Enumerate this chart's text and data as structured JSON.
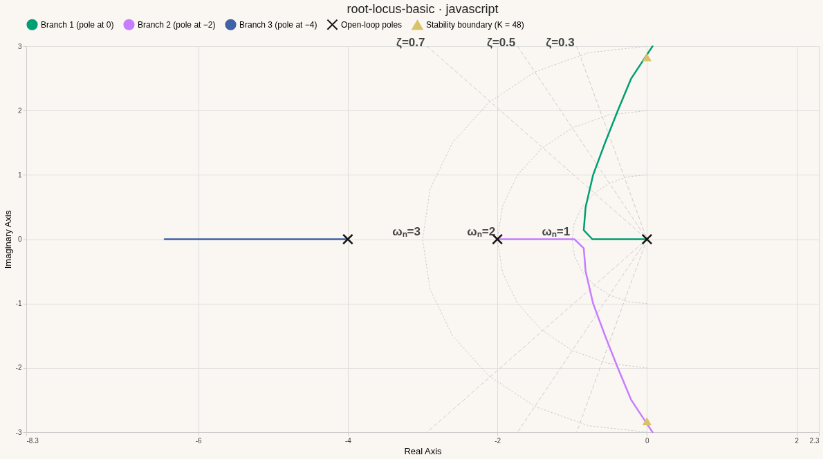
{
  "chart_data": {
    "type": "line",
    "title": "root-locus-basic · javascript",
    "xlabel": "Real Axis",
    "ylabel": "Imaginary Axis",
    "xlim": [
      -8.3,
      2.3
    ],
    "xticks": [
      -8.3,
      -6,
      -4,
      -2,
      0,
      2,
      2.3
    ],
    "ylim": [
      -3,
      3
    ],
    "yticks": [
      -3,
      -2,
      -1,
      0,
      1,
      2,
      3
    ],
    "grid": true,
    "legend": "top",
    "series": [
      {
        "color": "#cccccc",
        "line_style": "dashed",
        "marker": "none",
        "x": [
          -2.94,
          0,
          -2.94
        ],
        "values": [
          3,
          0,
          -3
        ]
      },
      {
        "color": "#cccccc",
        "line_style": "dashed",
        "marker": "none",
        "x": [
          -1.73,
          0,
          -1.73
        ],
        "values": [
          3,
          0,
          -3
        ]
      },
      {
        "color": "#cccccc",
        "line_style": "dashed",
        "marker": "none",
        "x": [
          -0.94,
          0,
          -0.94
        ],
        "values": [
          3,
          0,
          -3
        ]
      },
      {
        "color": "#cccccc",
        "line_style": "dotted",
        "marker": "none",
        "x": [
          0,
          -0.26,
          -0.5,
          -0.71,
          -0.87,
          -0.97,
          -1,
          -0.97,
          -0.87,
          -0.71,
          -0.5,
          -0.26,
          0
        ],
        "values": [
          1,
          0.97,
          0.87,
          0.71,
          0.5,
          0.26,
          0,
          -0.26,
          -0.5,
          -0.71,
          -0.87,
          -0.97,
          -1
        ]
      },
      {
        "color": "#cccccc",
        "line_style": "dotted",
        "marker": "none",
        "x": [
          0,
          -0.52,
          -1,
          -1.41,
          -1.73,
          -1.93,
          -2,
          -1.93,
          -1.73,
          -1.41,
          -1,
          -0.52,
          0
        ],
        "values": [
          2,
          1.93,
          1.73,
          1.41,
          1,
          0.52,
          0,
          -0.52,
          -1,
          -1.41,
          -1.73,
          -1.93,
          -2
        ]
      },
      {
        "color": "#cccccc",
        "line_style": "dotted",
        "marker": "none",
        "x": [
          0,
          -0.78,
          -1.5,
          -2.12,
          -2.6,
          -2.9,
          -3,
          -2.9,
          -2.6,
          -2.12,
          -1.5,
          -0.78,
          0
        ],
        "values": [
          3,
          2.9,
          2.6,
          2.12,
          1.5,
          0.78,
          0,
          -0.78,
          -1.5,
          -2.12,
          -2.6,
          -2.9,
          -3
        ]
      },
      {
        "name": "Branch 1 (pole at 0)",
        "color": "#009e73",
        "line_style": "solid",
        "marker": "none",
        "x": [
          0,
          -0.73,
          -0.845,
          -0.82,
          -0.72,
          -0.56,
          -0.39,
          -0.21,
          0,
          0.075
        ],
        "values": [
          0,
          0,
          0.14,
          0.5,
          1,
          1.5,
          2,
          2.5,
          2.87,
          3
        ]
      },
      {
        "name": "Branch 2 (pole at −2)",
        "color": "#c77dff",
        "line_style": "solid",
        "marker": "none",
        "x": [
          -2,
          -0.97,
          -0.845,
          -0.82,
          -0.72,
          -0.56,
          -0.39,
          -0.21,
          0,
          0.075
        ],
        "values": [
          0,
          0,
          -0.14,
          -0.5,
          -1,
          -1.5,
          -2,
          -2.5,
          -2.87,
          -3
        ]
      },
      {
        "name": "Branch 3 (pole at −4)",
        "color": "#3f63a6",
        "line_style": "solid",
        "marker": "none",
        "x": [
          -4,
          -6.45
        ],
        "values": [
          0,
          0
        ]
      },
      {
        "type": "scatter",
        "name": "Open-loop poles",
        "color": "#111111",
        "marker": "cross",
        "x": [
          0,
          -2,
          -4
        ],
        "values": [
          0,
          0,
          0
        ]
      },
      {
        "type": "scatter",
        "name": "Stability boundary (K = 48)",
        "color": "#d9c26a",
        "marker": "triangle",
        "x": [
          0,
          0
        ],
        "values": [
          2.83,
          -2.83
        ]
      }
    ],
    "annotations": [
      {
        "text": "ζ=0.7",
        "x": -2.94,
        "y": 3
      },
      {
        "text": "ζ=0.5",
        "x": -1.73,
        "y": 3
      },
      {
        "text": "ζ=0.3",
        "x": -0.94,
        "y": 3
      },
      {
        "text": "ωₙ=3",
        "x": -3,
        "y": 0
      },
      {
        "text": "ωₙ=2",
        "x": -2,
        "y": 0
      },
      {
        "text": "ωₙ=1",
        "x": -1,
        "y": 0
      }
    ]
  }
}
